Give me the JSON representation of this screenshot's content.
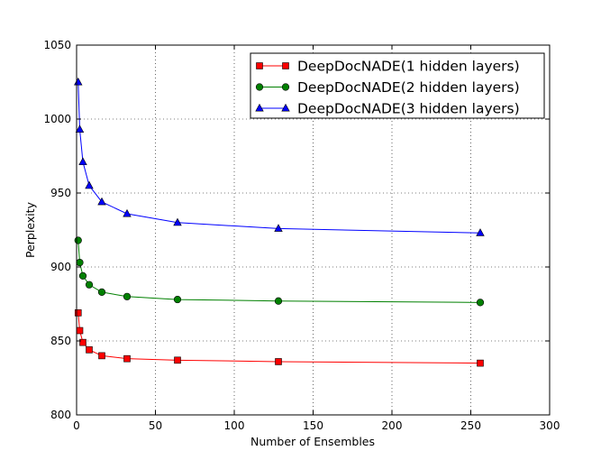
{
  "chart_data": {
    "type": "line",
    "title": "",
    "xlabel": "Number of Ensembles",
    "ylabel": "Perplexity",
    "xlim": [
      0,
      300
    ],
    "ylim": [
      800,
      1050
    ],
    "xticks": [
      "0",
      "50",
      "100",
      "150",
      "200",
      "250",
      "300"
    ],
    "yticks": [
      "800",
      "850",
      "900",
      "950",
      "1000",
      "1050"
    ],
    "grid": true,
    "legend_position": "top-right",
    "series": [
      {
        "name": "DeepDocNADE(1 hidden layers)",
        "color": "#ff0000",
        "marker": "square",
        "x": [
          1,
          2,
          4,
          8,
          16,
          32,
          64,
          128,
          256
        ],
        "y": [
          869,
          857,
          849,
          844,
          840,
          838,
          837,
          836,
          835
        ]
      },
      {
        "name": "DeepDocNADE(2 hidden layers)",
        "color": "#008000",
        "marker": "circle",
        "x": [
          1,
          2,
          4,
          8,
          16,
          32,
          64,
          128,
          256
        ],
        "y": [
          918,
          903,
          894,
          888,
          883,
          880,
          878,
          877,
          876
        ]
      },
      {
        "name": "DeepDocNADE(3 hidden layers)",
        "color": "#0000ff",
        "marker": "triangle",
        "x": [
          1,
          2,
          4,
          8,
          16,
          32,
          64,
          128,
          256
        ],
        "y": [
          1025,
          993,
          971,
          955,
          944,
          936,
          930,
          926,
          923
        ]
      }
    ]
  }
}
